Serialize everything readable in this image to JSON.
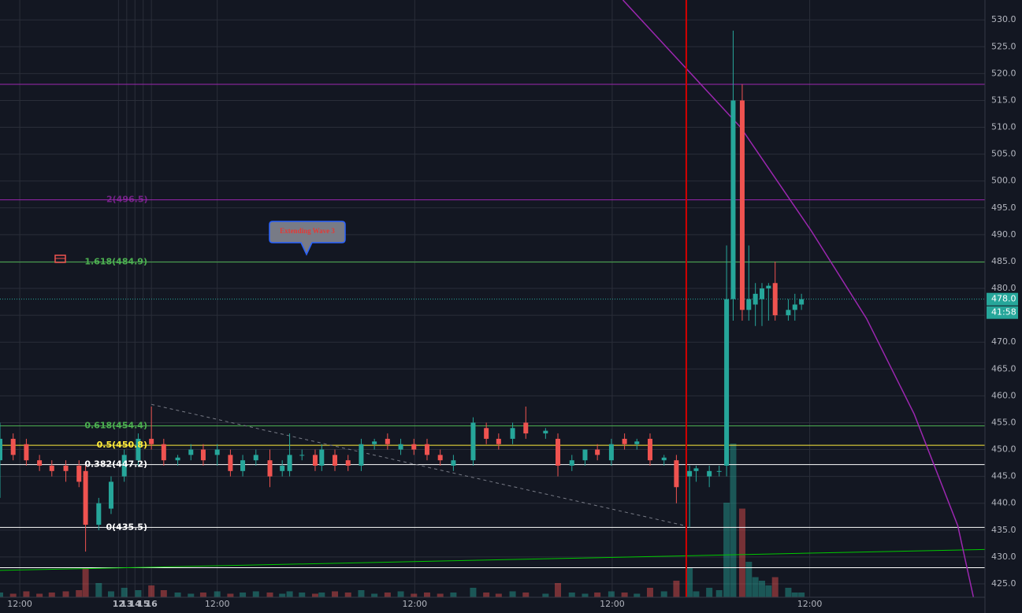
{
  "chart_data": {
    "type": "candlestick",
    "xlim": [
      -2.4,
      117.3
    ],
    "ylim": [
      422.5,
      533.7
    ],
    "xticks": [
      {
        "value": 0,
        "label": "12:00"
      },
      12,
      {
        "value": 24,
        "label": "12:00"
      },
      13,
      {
        "value": 48,
        "label": "12:00"
      },
      14,
      {
        "value": 72,
        "label": "12:00"
      },
      15,
      {
        "value": 96,
        "label": "12:00"
      },
      16
    ],
    "yticks": [
      {
        "value": 425,
        "label": "425.0"
      },
      {
        "value": 430,
        "label": "430.0"
      },
      {
        "value": 435,
        "label": "435.0"
      },
      {
        "value": 440,
        "label": "440.0"
      },
      {
        "value": 445,
        "label": "445.0"
      },
      {
        "value": 450,
        "label": "450.0"
      },
      {
        "value": 455,
        "label": "455.0"
      },
      {
        "value": 460,
        "label": "460.0"
      },
      {
        "value": 465,
        "label": "465.0"
      },
      {
        "value": 470,
        "label": "470.0"
      },
      {
        "value": 475,
        "label": "475.0"
      },
      {
        "value": 480,
        "label": "480.0"
      },
      {
        "value": 485,
        "label": "485.0"
      },
      {
        "value": 490,
        "label": "490.0"
      },
      {
        "value": 495,
        "label": "495.0"
      },
      {
        "value": 500,
        "label": "500.0"
      },
      {
        "value": 505,
        "label": "505.0"
      },
      {
        "value": 510,
        "label": "510.0"
      },
      {
        "value": 515,
        "label": "515.0"
      },
      {
        "value": 520,
        "label": "520.0"
      },
      {
        "value": 525,
        "label": "525.0"
      },
      {
        "value": 530,
        "label": "530.0"
      }
    ],
    "grid": true,
    "up_color": "#26a69a",
    "down_color": "#ef5350",
    "x": [
      -2.4,
      -0.8,
      0.8,
      2.4,
      3.9,
      5.6,
      7.2,
      8.0,
      9.6,
      11.1,
      12.7,
      14.4,
      16.0,
      17.5,
      19.2,
      20.8,
      22.3,
      24.0,
      25.6,
      27.1,
      28.7,
      30.4,
      31.9,
      32.8,
      34.3,
      35.9,
      36.7,
      38.3,
      39.9,
      41.5,
      43.1,
      44.7,
      46.3,
      47.9,
      49.5,
      51.1,
      52.7,
      55.1,
      56.7,
      58.2,
      59.9,
      61.5,
      63.9,
      65.4,
      67.1,
      68.7,
      70.2,
      71.9,
      73.5,
      75.0,
      76.6,
      78.3,
      79.8,
      81.4,
      82.2,
      83.8,
      85.0,
      85.9,
      86.7,
      87.8,
      88.6,
      89.4,
      90.2,
      91.0,
      91.8,
      93.4,
      94.2,
      95.0
    ],
    "open": [
      448,
      452,
      451,
      448,
      447,
      447,
      447,
      446,
      436,
      439,
      445,
      448,
      452,
      451,
      448,
      449,
      450,
      449,
      449,
      446,
      448,
      448,
      446,
      446,
      449,
      449,
      447,
      449,
      448,
      447,
      451,
      452,
      450,
      451,
      451,
      449,
      447,
      448,
      454,
      452,
      452,
      455,
      453,
      452,
      447,
      448,
      450,
      448,
      452,
      451,
      452,
      448,
      448,
      445,
      446,
      445,
      446,
      447,
      478,
      515,
      476,
      477,
      478,
      480,
      481,
      475,
      476,
      477
    ],
    "high": [
      455,
      453,
      452,
      449,
      448,
      448,
      448,
      447,
      441,
      445,
      450,
      453,
      458,
      452,
      449,
      451,
      451,
      451,
      450,
      449,
      450,
      450,
      448,
      453,
      450,
      450,
      451,
      450,
      449,
      452,
      452,
      453,
      452,
      452,
      452,
      450,
      449,
      456,
      455,
      453,
      455,
      458,
      454,
      453,
      449,
      450,
      451,
      452,
      453,
      452,
      453,
      449,
      449,
      447,
      447,
      447,
      447,
      488,
      528,
      518,
      488,
      481,
      481,
      481,
      485,
      478,
      479,
      479
    ],
    "low": [
      441,
      448,
      447,
      446,
      445,
      444,
      443,
      431,
      435,
      438,
      444,
      447,
      450,
      447,
      447,
      448,
      447,
      447,
      445,
      445,
      447,
      443,
      445,
      445,
      448,
      446,
      446,
      446,
      446,
      446,
      450,
      450,
      449,
      449,
      448,
      447,
      446,
      447,
      451,
      450,
      451,
      452,
      452,
      445,
      446,
      447,
      448,
      447,
      450,
      450,
      447,
      447,
      440,
      435.5,
      444,
      443,
      445,
      445,
      474,
      474,
      474,
      473,
      473,
      474,
      474,
      474,
      474,
      476
    ],
    "close": [
      452,
      449,
      448,
      447,
      446,
      446,
      444,
      436,
      440,
      444,
      449,
      452,
      451,
      448,
      448.5,
      450,
      448,
      450,
      446,
      448,
      449,
      445,
      447,
      449,
      449,
      447,
      450,
      447,
      447,
      451,
      451.5,
      451,
      451,
      450,
      449,
      448,
      448,
      455,
      452,
      451,
      454,
      453,
      453.5,
      447,
      448,
      450,
      449,
      451,
      451,
      451.5,
      448,
      448.5,
      443,
      446,
      446.5,
      446,
      446,
      478,
      515,
      476,
      478,
      479,
      480,
      480.5,
      475,
      476,
      477,
      478
    ],
    "volume": [
      4,
      3,
      5,
      3,
      4,
      5,
      6,
      25,
      12,
      5,
      8,
      6,
      10,
      6,
      4,
      3,
      4,
      5,
      3,
      4,
      5,
      4,
      3,
      5,
      4,
      3,
      4,
      5,
      4,
      6,
      3,
      4,
      5,
      3,
      4,
      3,
      4,
      8,
      4,
      3,
      5,
      4,
      3,
      12,
      4,
      3,
      4,
      5,
      4,
      3,
      8,
      5,
      14,
      25,
      5,
      8,
      6,
      80,
      130,
      75,
      30,
      17,
      14,
      10,
      17,
      8,
      4,
      4
    ],
    "levels": [
      {
        "value": 518,
        "color": "#9c27b0"
      },
      {
        "value": 496.5,
        "color": "#9c27b0",
        "label": "2(496.5)"
      },
      {
        "value": 484.9,
        "color": "#4caf50",
        "label": "1.618(484.9)"
      },
      {
        "value": 454.4,
        "color": "#4caf50",
        "label": "0.618(454.4)"
      },
      {
        "value": 450.8,
        "color": "#ffeb3b",
        "label": "0.5(450.8)"
      },
      {
        "value": 447.2,
        "color": "#ffffff",
        "label": "0.382(447.2)"
      },
      {
        "value": 435.5,
        "color": "#ffffff",
        "label": "0(435.5)"
      },
      {
        "value": 428,
        "color": "#ffffff"
      }
    ],
    "last_price": {
      "value": 478,
      "label": "478.0",
      "color": "#26a69a"
    },
    "countdown": "41:58",
    "vertical_line": {
      "x": 81.0,
      "color": "#d50000"
    },
    "trend_line": {
      "x": [
        -2.4,
        117.3
      ],
      "y": [
        427.5,
        431.4
      ],
      "color": "#00c800"
    },
    "dashed_line": {
      "x": [
        16.0,
        80.9
      ],
      "y": [
        458.4,
        435.8
      ],
      "color": "#787b86"
    },
    "curve": {
      "x": [
        73.3,
        80.9,
        87.6,
        96.2,
        102.9,
        108.7,
        114.0,
        115.9
      ],
      "y": [
        533.7,
        521.1,
        510.0,
        490.7,
        474.4,
        456.6,
        435.8,
        422.5
      ],
      "color": "#9c27b0"
    },
    "annotation": "Extending Wave 3"
  }
}
